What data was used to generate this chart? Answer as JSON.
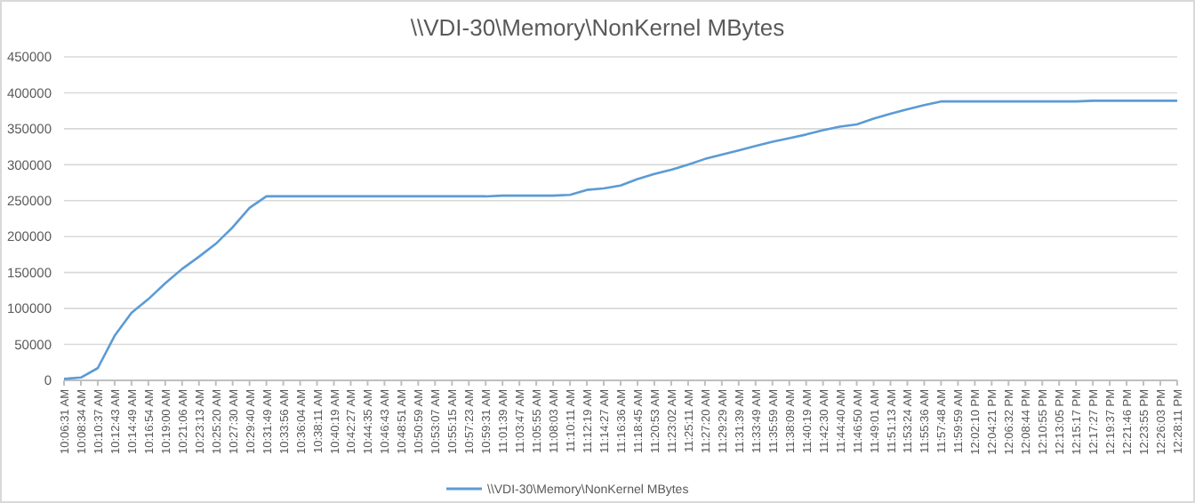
{
  "chart_data": {
    "type": "line",
    "title": "\\\\VDI-30\\Memory\\NonKernel  MBytes",
    "categories": [
      "10:06:31 AM",
      "10:08:34 AM",
      "10:10:37 AM",
      "10:12:43 AM",
      "10:14:49 AM",
      "10:16:54 AM",
      "10:19:00 AM",
      "10:21:06 AM",
      "10:23:13 AM",
      "10:25:20 AM",
      "10:27:30 AM",
      "10:29:40 AM",
      "10:31:49 AM",
      "10:33:56 AM",
      "10:36:04 AM",
      "10:38:11 AM",
      "10:40:19 AM",
      "10:42:27 AM",
      "10:44:35 AM",
      "10:46:43 AM",
      "10:48:51 AM",
      "10:50:59 AM",
      "10:53:07 AM",
      "10:55:15 AM",
      "10:57:23 AM",
      "10:59:31 AM",
      "11:01:39 AM",
      "11:03:47 AM",
      "11:05:55 AM",
      "11:08:03 AM",
      "11:10:11 AM",
      "11:12:19 AM",
      "11:14:27 AM",
      "11:16:36 AM",
      "11:18:45 AM",
      "11:20:53 AM",
      "11:23:02 AM",
      "11:25:11 AM",
      "11:27:20 AM",
      "11:29:29 AM",
      "11:31:39 AM",
      "11:33:49 AM",
      "11:35:59 AM",
      "11:38:09 AM",
      "11:40:19 AM",
      "11:42:30 AM",
      "11:44:40 AM",
      "11:46:50 AM",
      "11:49:01 AM",
      "11:51:13 AM",
      "11:53:24 AM",
      "11:55:36 AM",
      "11:57:48 AM",
      "11:59:59 AM",
      "12:02:10 PM",
      "12:04:21 PM",
      "12:06:32 PM",
      "12:08:44 PM",
      "12:10:55 PM",
      "12:13:05 PM",
      "12:15:17 PM",
      "12:17:27 PM",
      "12:19:37 PM",
      "12:21:46 PM",
      "12:23:55 PM",
      "12:26:03 PM",
      "12:28:11 PM"
    ],
    "series": [
      {
        "name": "\\\\VDI-30\\Memory\\NonKernel  MBytes",
        "color": "#5b9bd5",
        "values": [
          2000,
          4000,
          17000,
          62000,
          94000,
          113000,
          135000,
          155000,
          172000,
          190000,
          213000,
          240000,
          256000,
          256000,
          256000,
          256000,
          256000,
          256000,
          256000,
          256000,
          256000,
          256000,
          256000,
          256000,
          256000,
          256000,
          257000,
          257000,
          257000,
          257000,
          258000,
          265000,
          267000,
          271000,
          280000,
          287000,
          293000,
          300000,
          308000,
          314000,
          320000,
          326000,
          332000,
          337000,
          342000,
          348000,
          353000,
          356000,
          364000,
          371000,
          377000,
          383000,
          388000,
          388000,
          388000,
          388000,
          388000,
          388000,
          388000,
          388000,
          388000,
          389000,
          389000,
          389000,
          389000,
          389000,
          389000
        ]
      }
    ],
    "ylim": [
      0,
      450000
    ],
    "yticks": [
      0,
      50000,
      100000,
      150000,
      200000,
      250000,
      300000,
      350000,
      400000,
      450000
    ],
    "grid": "y",
    "legend": "bottom",
    "marker": "none",
    "line_style": "solid"
  }
}
